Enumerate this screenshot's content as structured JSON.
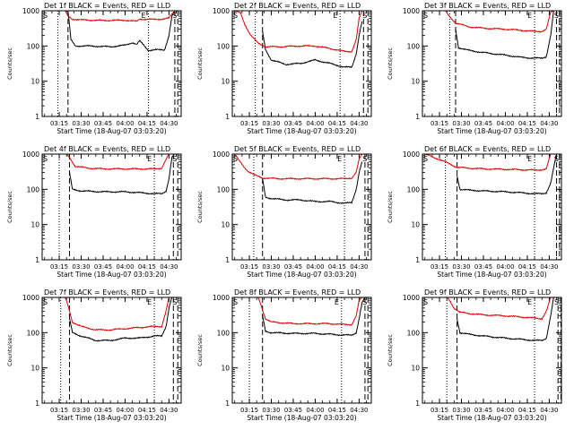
{
  "figure": {
    "xlabel": "Start Time (18-Aug-07 03:03:20)",
    "ylabel": "Counts/sec",
    "y_ticks": [
      "1",
      "10",
      "100",
      "1000"
    ],
    "x_ticks": [
      "03:15",
      "03:30",
      "03:45",
      "04:00",
      "04:15",
      "04:30"
    ],
    "marker_labels": [
      "S",
      "E",
      "S"
    ],
    "colors": {
      "events": "#000000",
      "lld": "#e00000",
      "axes": "#000000",
      "background": "#ffffff"
    }
  },
  "chart_data": [
    {
      "type": "line",
      "title": "Det 1f BLACK = Events, RED = LLD",
      "xlabel": "Start Time (18-Aug-07 03:03:20)",
      "ylabel": "Counts/sec",
      "xlim": [
        "03:03:20",
        "04:38:20"
      ],
      "ylim": [
        1,
        1000
      ],
      "yscale": "log",
      "markers": {
        "dotted": [
          "03:14",
          "04:16"
        ],
        "dashed": [
          "03:21",
          "04:34",
          "04:36"
        ]
      },
      "series": [
        {
          "name": "BLACK = Events",
          "x": [
            "03:21",
            "03:23",
            "03:26",
            "03:35",
            "03:50",
            "04:00",
            "04:05",
            "04:08",
            "04:10",
            "04:16",
            "04:22",
            "04:27",
            "04:30",
            "04:32",
            "04:34"
          ],
          "values": [
            1000,
            150,
            100,
            100,
            95,
            105,
            125,
            110,
            140,
            75,
            78,
            78,
            200,
            700,
            1000
          ]
        },
        {
          "name": "RED = LLD",
          "x": [
            "03:19",
            "03:21",
            "03:24",
            "03:30",
            "03:45",
            "04:00",
            "04:08",
            "04:10",
            "04:16",
            "04:22",
            "04:27",
            "04:30",
            "04:32",
            "04:34"
          ],
          "values": [
            1000,
            700,
            580,
            550,
            530,
            540,
            500,
            580,
            570,
            570,
            590,
            620,
            800,
            1000
          ]
        }
      ]
    },
    {
      "type": "line",
      "title": "Det 2f BLACK = Events, RED = LLD",
      "xlabel": "Start Time (18-Aug-07 03:03:20)",
      "ylabel": "Counts/sec",
      "xlim": [
        "03:03:20",
        "04:38:20"
      ],
      "ylim": [
        1,
        1000
      ],
      "yscale": "log",
      "markers": {
        "dotted": [
          "03:19",
          "04:17"
        ],
        "dashed": [
          "03:24",
          "04:33",
          "04:36"
        ]
      },
      "series": [
        {
          "name": "BLACK = Events",
          "x": [
            "03:24",
            "03:26",
            "03:30",
            "03:40",
            "03:50",
            "04:00",
            "04:10",
            "04:20",
            "04:25",
            "04:28",
            "04:30",
            "04:32"
          ],
          "values": [
            250,
            80,
            40,
            30,
            32,
            40,
            32,
            25,
            25,
            60,
            200,
            500
          ]
        },
        {
          "name": "RED = LLD",
          "x": [
            "03:05",
            "03:09",
            "03:12",
            "03:16",
            "03:21",
            "03:26",
            "03:35",
            "03:50",
            "04:00",
            "04:10",
            "04:20",
            "04:25",
            "04:28",
            "04:30",
            "04:32"
          ],
          "values": [
            1000,
            850,
            400,
            200,
            120,
            95,
            95,
            100,
            100,
            85,
            70,
            70,
            150,
            600,
            1000
          ]
        }
      ]
    },
    {
      "type": "line",
      "title": "Det 3f BLACK = Events, RED = LLD",
      "xlabel": "Start Time (18-Aug-07 03:03:20)",
      "ylabel": "Counts/sec",
      "xlim": [
        "03:03:20",
        "04:38:20"
      ],
      "ylim": [
        1,
        1000
      ],
      "yscale": "log",
      "markers": {
        "dotted": [
          "03:22",
          "04:20"
        ],
        "dashed": [
          "03:26",
          "04:35",
          "04:37"
        ]
      },
      "series": [
        {
          "name": "BLACK = Events",
          "x": [
            "03:26",
            "03:28",
            "03:35",
            "03:45",
            "04:00",
            "04:10",
            "04:20",
            "04:25",
            "04:28",
            "04:31",
            "04:33"
          ],
          "values": [
            300,
            90,
            75,
            65,
            55,
            48,
            45,
            45,
            50,
            200,
            1000
          ]
        },
        {
          "name": "RED = LLD",
          "x": [
            "03:19",
            "03:21",
            "03:26",
            "03:35",
            "03:45",
            "04:00",
            "04:10",
            "04:20",
            "04:25",
            "04:28",
            "04:31",
            "04:33"
          ],
          "values": [
            1000,
            750,
            450,
            350,
            320,
            300,
            280,
            260,
            260,
            300,
            900,
            1000
          ]
        }
      ]
    },
    {
      "type": "line",
      "title": "Det 4f BLACK = Events, RED = LLD",
      "xlabel": "Start Time (18-Aug-07 03:03:20)",
      "ylabel": "Counts/sec",
      "xlim": [
        "03:03:20",
        "04:38:20"
      ],
      "ylim": [
        1,
        1000
      ],
      "yscale": "log",
      "markers": {
        "dotted": [
          "03:15",
          "04:20"
        ],
        "dashed": [
          "03:22",
          "04:33",
          "04:36"
        ]
      },
      "series": [
        {
          "name": "BLACK = Events",
          "x": [
            "03:22",
            "03:24",
            "03:30",
            "03:45",
            "04:00",
            "04:10",
            "04:20",
            "04:25",
            "04:28",
            "04:30",
            "04:32",
            "04:34"
          ],
          "values": [
            300,
            100,
            90,
            85,
            85,
            80,
            75,
            75,
            90,
            200,
            800,
            1000
          ]
        },
        {
          "name": "RED = LLD",
          "x": [
            "03:20",
            "03:22",
            "03:26",
            "03:35",
            "03:45",
            "04:00",
            "04:10",
            "04:20",
            "04:25",
            "04:28",
            "04:30",
            "04:32"
          ],
          "values": [
            1000,
            800,
            450,
            400,
            380,
            380,
            380,
            380,
            400,
            700,
            1000,
            1000
          ]
        }
      ]
    },
    {
      "type": "line",
      "title": "Det 5f BLACK = Events, RED = LLD",
      "xlabel": "Start Time (18-Aug-07 03:03:20)",
      "ylabel": "Counts/sec",
      "xlim": [
        "03:03:20",
        "04:38:20"
      ],
      "ylim": [
        1,
        1000
      ],
      "yscale": "log",
      "markers": {
        "dotted": [
          "03:18",
          "04:20"
        ],
        "dashed": [
          "03:24",
          "04:34",
          "04:36"
        ]
      },
      "series": [
        {
          "name": "BLACK = Events",
          "x": [
            "03:24",
            "03:26",
            "03:30",
            "03:40",
            "03:50",
            "04:00",
            "04:10",
            "04:20",
            "04:25",
            "04:28",
            "04:30",
            "04:32"
          ],
          "values": [
            200,
            60,
            55,
            50,
            50,
            45,
            45,
            40,
            42,
            100,
            300,
            600
          ]
        },
        {
          "name": "RED = LLD",
          "x": [
            "03:05",
            "03:08",
            "03:11",
            "03:14",
            "03:18",
            "03:24",
            "03:35",
            "03:50",
            "04:00",
            "04:10",
            "04:20",
            "04:25",
            "04:28",
            "04:30",
            "04:32"
          ],
          "values": [
            1000,
            650,
            450,
            330,
            260,
            210,
            200,
            200,
            200,
            200,
            200,
            210,
            300,
            700,
            1000
          ]
        }
      ]
    },
    {
      "type": "line",
      "title": "Det 6f BLACK = Events, RED = LLD",
      "xlabel": "Start Time (18-Aug-07 03:03:20)",
      "ylabel": "Counts/sec",
      "xlim": [
        "03:03:20",
        "04:38:20"
      ],
      "ylim": [
        1,
        1000
      ],
      "yscale": "log",
      "markers": {
        "dotted": [
          "03:19",
          "04:20"
        ],
        "dashed": [
          "03:27",
          "04:35",
          "04:37"
        ]
      },
      "series": [
        {
          "name": "BLACK = Events",
          "x": [
            "03:27",
            "03:29",
            "03:35",
            "03:45",
            "04:00",
            "04:10",
            "04:20",
            "04:25",
            "04:28",
            "04:31",
            "04:33",
            "04:35"
          ],
          "values": [
            250,
            100,
            95,
            90,
            85,
            80,
            75,
            75,
            80,
            150,
            400,
            1000
          ]
        },
        {
          "name": "RED = LLD",
          "x": [
            "03:05",
            "03:08",
            "03:11",
            "03:15",
            "03:19",
            "03:23",
            "03:27",
            "03:35",
            "03:45",
            "04:00",
            "04:10",
            "04:20",
            "04:25",
            "04:28",
            "04:31",
            "04:33"
          ],
          "values": [
            1000,
            900,
            800,
            700,
            600,
            500,
            420,
            400,
            380,
            370,
            360,
            350,
            360,
            380,
            1000,
            1000
          ]
        }
      ]
    },
    {
      "type": "line",
      "title": "Det 7f BLACK = Events, RED = LLD",
      "xlabel": "Start Time (18-Aug-07 03:03:20)",
      "ylabel": "Counts/sec",
      "xlim": [
        "03:03:20",
        "04:38:20"
      ],
      "ylim": [
        1,
        1000
      ],
      "yscale": "log",
      "markers": {
        "dotted": [
          "03:16",
          "04:20"
        ],
        "dashed": [
          "03:22",
          "04:33",
          "04:36"
        ]
      },
      "series": [
        {
          "name": "BLACK = Events",
          "x": [
            "03:22",
            "03:24",
            "03:30",
            "03:40",
            "03:50",
            "04:00",
            "04:10",
            "04:20",
            "04:25",
            "04:28",
            "04:30",
            "04:32"
          ],
          "values": [
            250,
            100,
            80,
            60,
            60,
            70,
            70,
            80,
            80,
            150,
            500,
            1000
          ]
        },
        {
          "name": "RED = LLD",
          "x": [
            "03:19",
            "03:21",
            "03:24",
            "03:30",
            "03:40",
            "03:50",
            "04:00",
            "04:10",
            "04:20",
            "04:25",
            "04:28",
            "04:30"
          ],
          "values": [
            1000,
            600,
            200,
            150,
            120,
            120,
            130,
            140,
            150,
            150,
            400,
            1000
          ]
        }
      ]
    },
    {
      "type": "line",
      "title": "Det 8f BLACK = Events, RED = LLD",
      "xlabel": "Start Time (18-Aug-07 03:03:20)",
      "ylabel": "Counts/sec",
      "xlim": [
        "03:03:20",
        "04:38:20"
      ],
      "ylim": [
        1,
        1000
      ],
      "yscale": "log",
      "markers": {
        "dotted": [
          "03:15",
          "04:18"
        ],
        "dashed": [
          "03:24",
          "04:34",
          "04:36"
        ]
      },
      "series": [
        {
          "name": "BLACK = Events",
          "x": [
            "03:24",
            "03:26",
            "03:30",
            "03:45",
            "04:00",
            "04:10",
            "04:20",
            "04:25",
            "04:28",
            "04:30",
            "04:32",
            "04:34"
          ],
          "values": [
            300,
            110,
            100,
            95,
            95,
            90,
            85,
            85,
            100,
            250,
            700,
            1000
          ]
        },
        {
          "name": "RED = LLD",
          "x": [
            "03:21",
            "03:23",
            "03:26",
            "03:30",
            "03:45",
            "04:00",
            "04:10",
            "04:20",
            "04:25",
            "04:28",
            "04:30",
            "04:32"
          ],
          "values": [
            1000,
            600,
            250,
            200,
            180,
            180,
            180,
            170,
            170,
            300,
            800,
            1000
          ]
        }
      ]
    },
    {
      "type": "line",
      "title": "Det 9f BLACK = Events, RED = LLD",
      "xlabel": "Start Time (18-Aug-07 03:03:20)",
      "ylabel": "Counts/sec",
      "xlim": [
        "03:03:20",
        "04:38:20"
      ],
      "ylim": [
        1,
        1000
      ],
      "yscale": "log",
      "markers": {
        "dotted": [
          "03:20",
          "04:20"
        ],
        "dashed": [
          "03:27",
          "04:36",
          "04:38"
        ]
      },
      "series": [
        {
          "name": "BLACK = Events",
          "x": [
            "03:27",
            "03:29",
            "03:35",
            "03:45",
            "04:00",
            "04:10",
            "04:20",
            "04:25",
            "04:28",
            "04:31",
            "04:33"
          ],
          "values": [
            250,
            100,
            90,
            80,
            70,
            65,
            60,
            60,
            70,
            300,
            1000
          ]
        },
        {
          "name": "RED = LLD",
          "x": [
            "03:20",
            "03:22",
            "03:25",
            "03:29",
            "03:35",
            "03:45",
            "04:00",
            "04:10",
            "04:20",
            "04:25",
            "04:28",
            "04:31"
          ],
          "values": [
            1000,
            800,
            500,
            380,
            350,
            320,
            300,
            280,
            260,
            250,
            400,
            1000
          ]
        }
      ]
    }
  ]
}
